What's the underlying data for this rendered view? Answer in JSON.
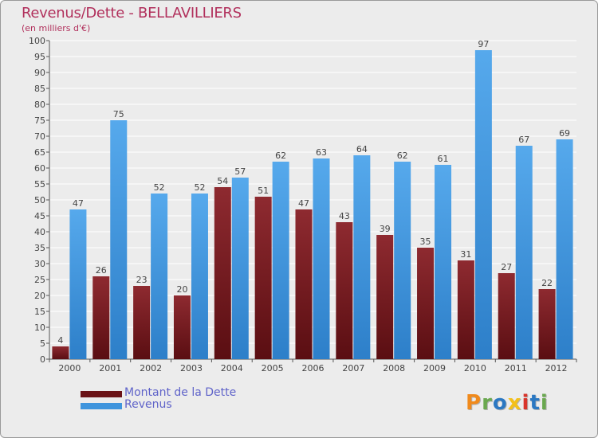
{
  "title": "Revenus/Dette - BELLAVILLIERS",
  "subtitle": "(en milliers d'€)",
  "colors": {
    "dette": "#7a1a1f",
    "revenus": "#3f95dd",
    "title": "#b1305c",
    "legend_text": "#5f63c9"
  },
  "logo": {
    "text": "Proxiti",
    "colors": [
      "#f08a1c",
      "#6aa84f",
      "#2b78c2",
      "#f3c01a",
      "#d9342b",
      "#2b78c2",
      "#6aa84f"
    ]
  },
  "chart_data": {
    "type": "bar",
    "categories": [
      "2000",
      "2001",
      "2002",
      "2003",
      "2004",
      "2005",
      "2006",
      "2007",
      "2008",
      "2009",
      "2010",
      "2011",
      "2012"
    ],
    "series": [
      {
        "name": "Montant de la Dette",
        "values": [
          4,
          26,
          23,
          20,
          54,
          51,
          47,
          43,
          39,
          35,
          31,
          27,
          22
        ]
      },
      {
        "name": "Revenus",
        "values": [
          47,
          75,
          52,
          52,
          57,
          62,
          63,
          64,
          62,
          61,
          97,
          67,
          69
        ]
      }
    ],
    "ylim": [
      0,
      100
    ],
    "ytick_step": 5,
    "grid": true,
    "legend_position": "bottom-left"
  }
}
